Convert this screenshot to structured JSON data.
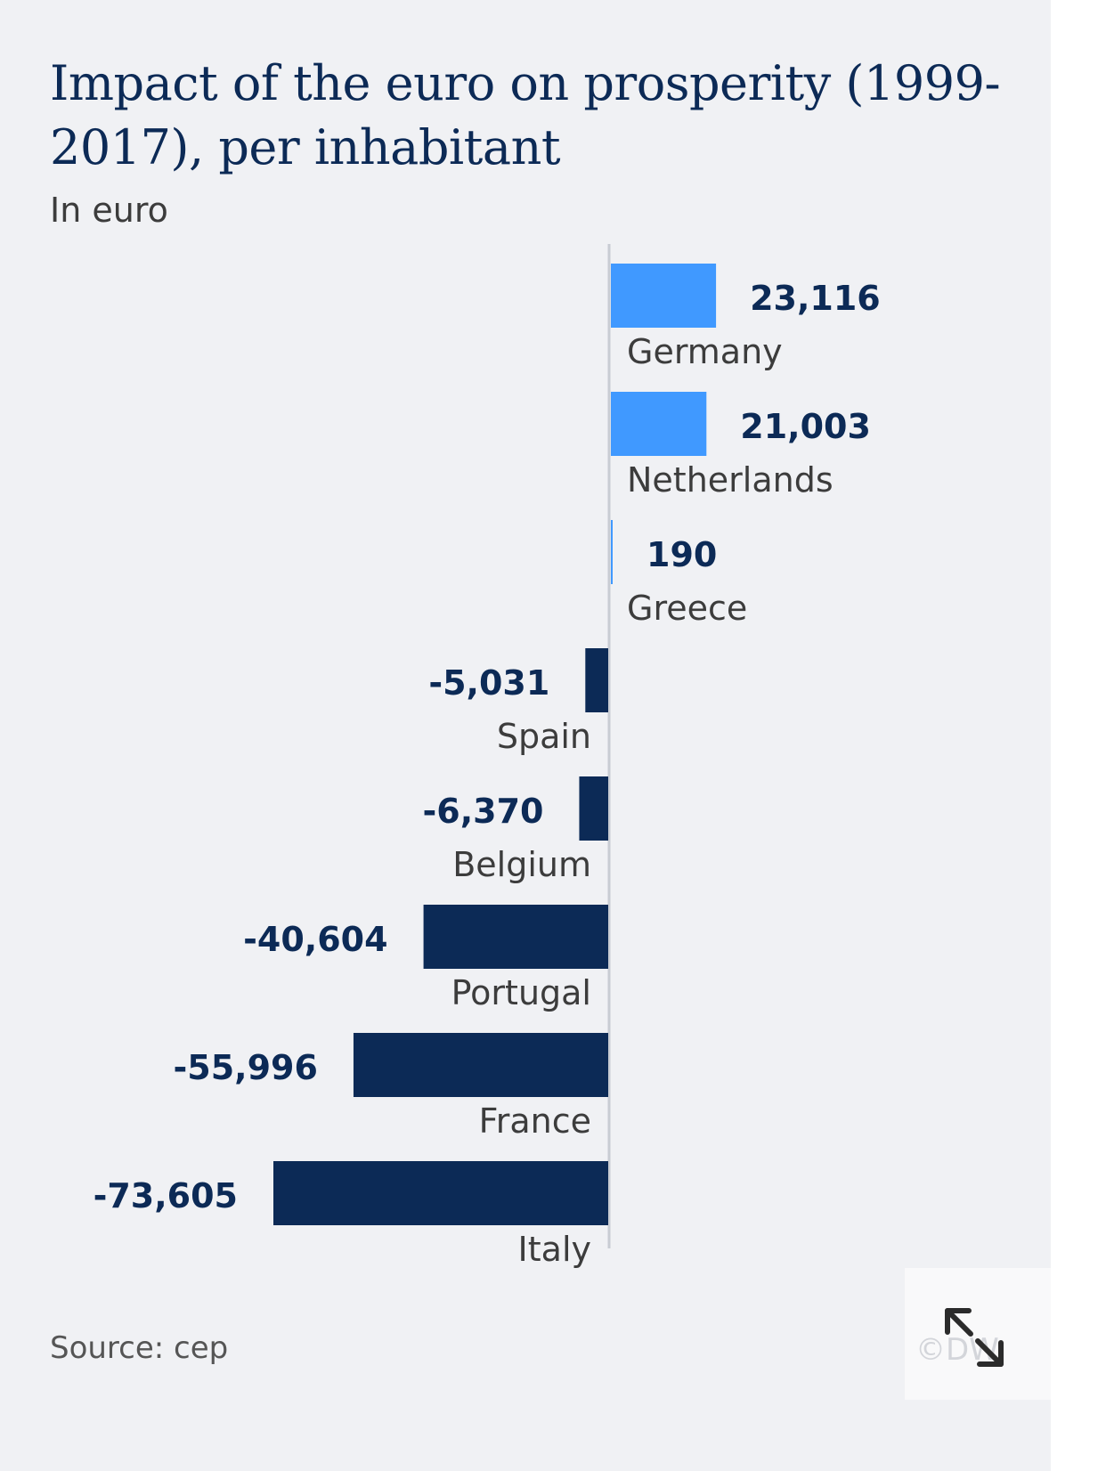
{
  "header": {
    "title": "Impact of the euro on prosperity (1999-2017), per inhabitant",
    "subtitle": "In euro"
  },
  "footer": {
    "source": "Source: cep",
    "copyright": "©DW"
  },
  "colors": {
    "positive": "#4099ff",
    "negative": "#0c2a56",
    "axis": "#c8ccd3"
  },
  "icons": {
    "expand": "expand-arrows-icon"
  },
  "chart_data": {
    "type": "bar",
    "orientation": "horizontal",
    "title": "Impact of the euro on prosperity (1999-2017), per inhabitant",
    "subtitle": "In euro",
    "categories": [
      "Germany",
      "Netherlands",
      "Greece",
      "Spain",
      "Belgium",
      "Portugal",
      "France",
      "Italy"
    ],
    "values": [
      23116,
      21003,
      190,
      -5031,
      -6370,
      -40604,
      -55996,
      -73605
    ],
    "value_labels": [
      "23,116",
      "21,003",
      "190",
      "-5,031",
      "-6,370",
      "-40,604",
      "-55,996",
      "-73,605"
    ],
    "grid": false,
    "legend": "none"
  }
}
